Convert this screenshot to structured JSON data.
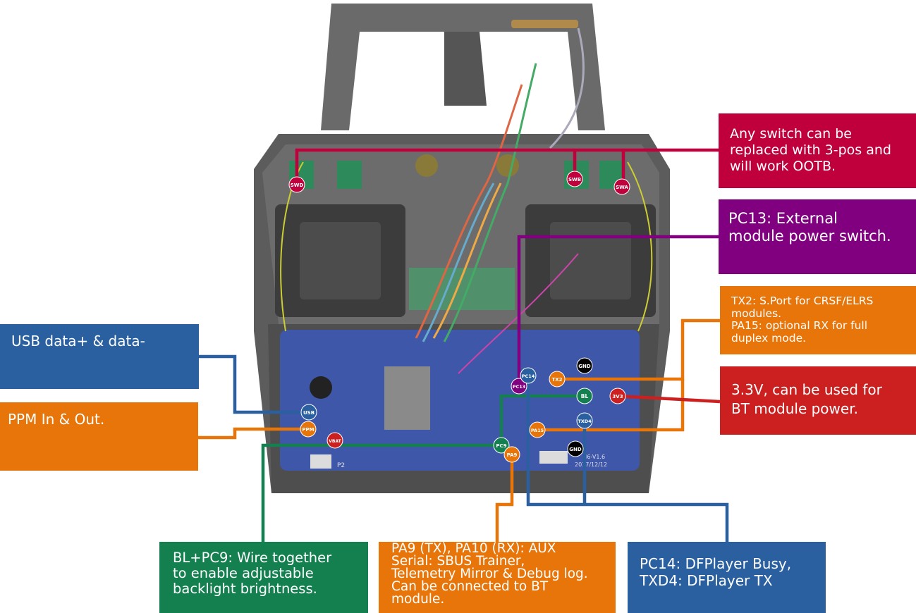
{
  "colors": {
    "crimson": "#c0003c",
    "purple": "#800080",
    "orange": "#e8750a",
    "red": "#cc2020",
    "blue": "#2a5fa0",
    "green": "#148050",
    "black": "#000000",
    "board_blue": "#3f57a8",
    "case_gray": "#5a5a5a"
  },
  "callouts": {
    "switch": "Any switch can be\nreplaced with 3-pos and\nwill work OOTB.",
    "pc13": "PC13: External\nmodule power switch.",
    "tx2": "TX2: S.Port for CRSF/ELRS\nmodules.\nPA15: optional RX for full\nduplex mode.",
    "v33": "3.3V, can be used for\nBT module power.",
    "usb": "USB data+ & data-",
    "ppm": "PPM In & Out.",
    "bl": "BL+PC9: Wire together\nto enable adjustable\nbacklight brightness.",
    "pa9": "PA9 (TX), PA10 (RX): AUX\nSerial: SBUS Trainer,\nTelemetry Mirror & Debug log.\nCan be connected to BT\nmodule.",
    "pc14": "PC14: DFPlayer Busy,\nTXD4: DFPlayer TX"
  },
  "pins": {
    "swd": "SWD",
    "swb": "SWB",
    "swa": "SWA",
    "pc13": "PC13",
    "pc14": "PC14",
    "tx2": "TX2",
    "gnd_top": "GND",
    "bl": "BL",
    "v33": "3V3",
    "txd4": "TXD4",
    "pa15": "PA15",
    "gnd_bottom": "GND",
    "pc9": "PC9",
    "pa9": "PA9",
    "usb": "USB",
    "ppm": "PPM",
    "vbat": "VBAT"
  },
  "board_labels": {
    "model": "I6-V1.6",
    "date": "2017/12/12",
    "p2": "P2"
  }
}
